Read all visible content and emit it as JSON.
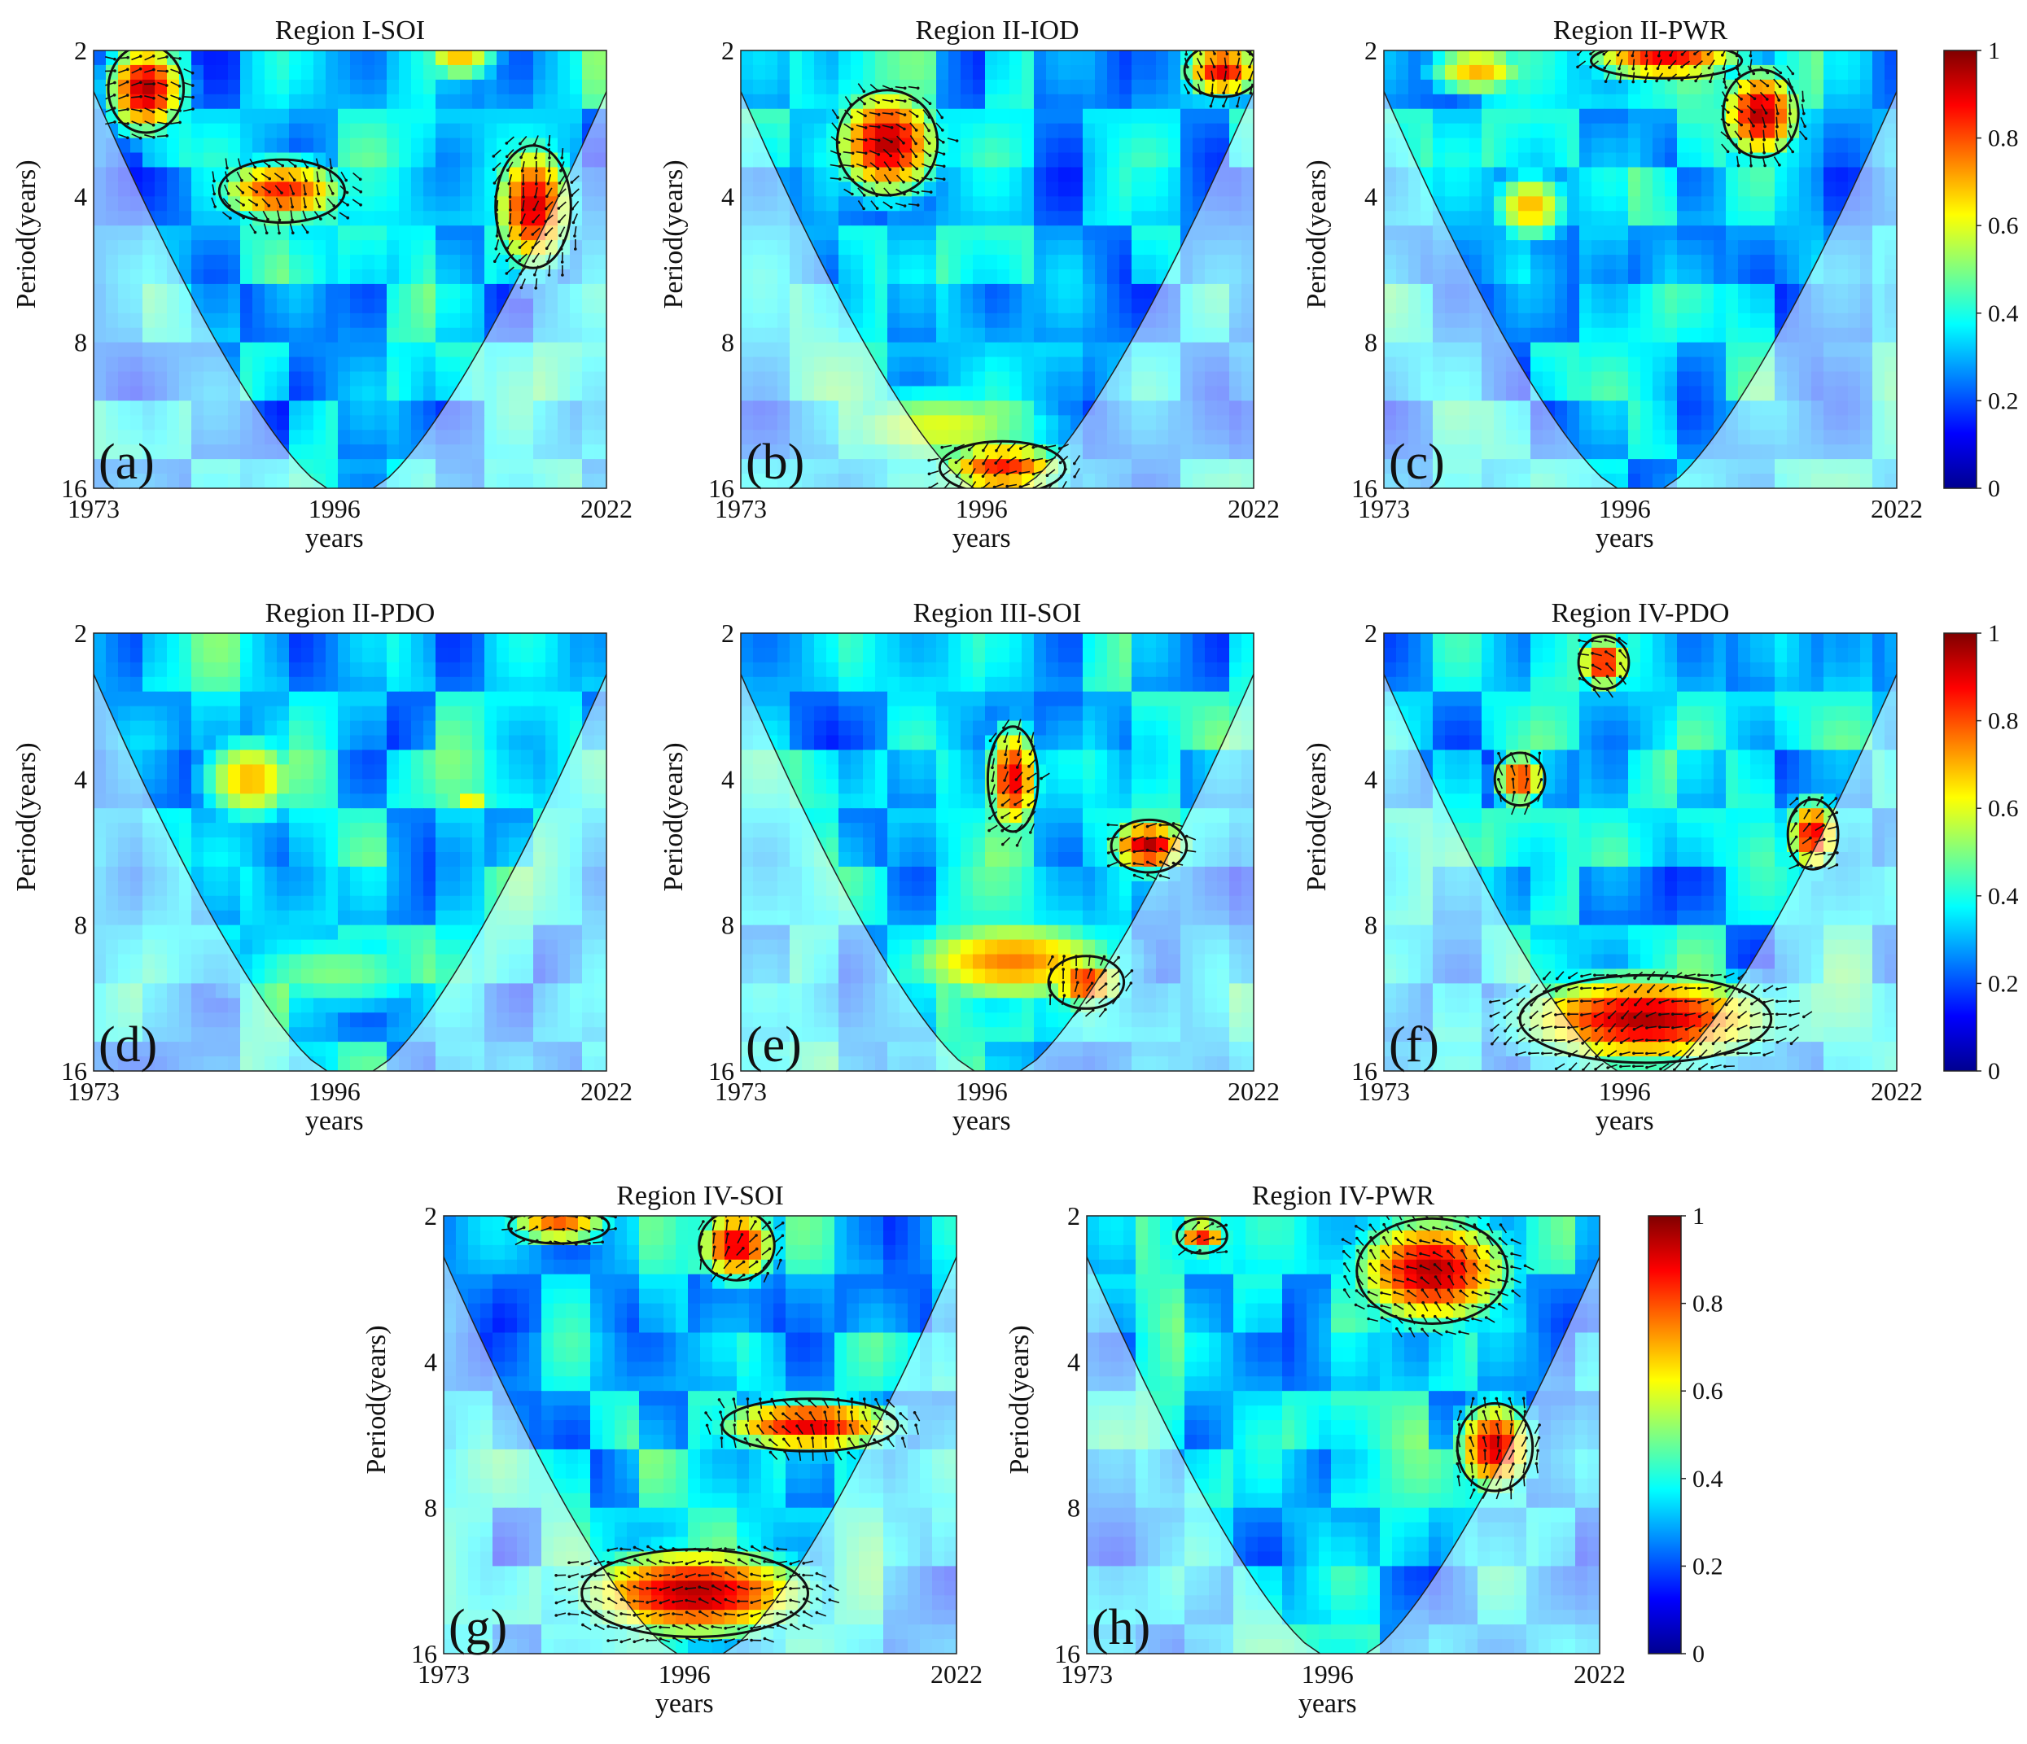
{
  "figure": {
    "description_labels": {
      "x_label": "years",
      "y_label": "Period(years)"
    }
  },
  "colorbar": {
    "ticks": [
      "0",
      "0.2",
      "0.4",
      "0.6",
      "0.8",
      "1"
    ],
    "colormap": [
      "#00008f",
      "#0000ff",
      "#0080ff",
      "#00ffff",
      "#80ff80",
      "#ffff00",
      "#ff8000",
      "#ff0000",
      "#800000"
    ]
  },
  "chart_data": [
    {
      "type": "heatmap",
      "title": "Region I-SOI",
      "panel_label": "(a)",
      "xlabel": "years",
      "ylabel": "Period(years)",
      "x_ticks": [
        "1973",
        "1996",
        "2022"
      ],
      "y_ticks": [
        "2",
        "4",
        "8",
        "16"
      ],
      "xlim": [
        1973,
        2022
      ],
      "ylim": [
        2,
        16
      ],
      "clim": [
        0,
        1
      ],
      "blobs": [
        {
          "x": 1978,
          "p": 2.4,
          "v": 0.95,
          "sx": 3,
          "sy": 0.25
        },
        {
          "x": 1991,
          "p": 3.9,
          "v": 0.85,
          "sx": 5,
          "sy": 0.18
        },
        {
          "x": 2015,
          "p": 4.2,
          "v": 0.92,
          "sx": 3,
          "sy": 0.35
        },
        {
          "x": 2008,
          "p": 2.1,
          "v": 0.7,
          "sx": 3,
          "sy": 0.1
        },
        {
          "x": 1998,
          "p": 11.5,
          "v": 0.05,
          "sx": 12,
          "sy": 0.3
        }
      ]
    },
    {
      "type": "heatmap",
      "title": "Region II-IOD",
      "panel_label": "(b)",
      "xlabel": "years",
      "ylabel": "Period(years)",
      "x_ticks": [
        "1973",
        "1996",
        "2022"
      ],
      "y_ticks": [
        "2",
        "4",
        "8",
        "16"
      ],
      "xlim": [
        1973,
        2022
      ],
      "ylim": [
        2,
        16
      ],
      "clim": [
        0,
        1
      ],
      "blobs": [
        {
          "x": 1987,
          "p": 3.1,
          "v": 0.95,
          "sx": 4,
          "sy": 0.3
        },
        {
          "x": 2019,
          "p": 2.2,
          "v": 0.9,
          "sx": 3,
          "sy": 0.15
        },
        {
          "x": 1998,
          "p": 14.5,
          "v": 0.85,
          "sx": 5,
          "sy": 0.15
        },
        {
          "x": 1992,
          "p": 12,
          "v": 0.6,
          "sx": 10,
          "sy": 0.25
        }
      ]
    },
    {
      "type": "heatmap",
      "title": "Region II-PWR",
      "panel_label": "(c)",
      "xlabel": "years",
      "ylabel": "Period(years)",
      "x_ticks": [
        "1973",
        "1996",
        "2022"
      ],
      "y_ticks": [
        "2",
        "4",
        "8",
        "16"
      ],
      "xlim": [
        1973,
        2022
      ],
      "ylim": [
        2,
        16
      ],
      "clim": [
        0,
        1
      ],
      "blobs": [
        {
          "x": 2009,
          "p": 2.7,
          "v": 0.95,
          "sx": 3,
          "sy": 0.25
        },
        {
          "x": 2000,
          "p": 2.1,
          "v": 0.9,
          "sx": 6,
          "sy": 0.1
        },
        {
          "x": 1982,
          "p": 2.2,
          "v": 0.7,
          "sx": 4,
          "sy": 0.15
        },
        {
          "x": 1987,
          "p": 4.2,
          "v": 0.7,
          "sx": 3,
          "sy": 0.2
        }
      ]
    },
    {
      "type": "heatmap",
      "title": "Region II-PDO",
      "panel_label": "(d)",
      "xlabel": "years",
      "ylabel": "Period(years)",
      "x_ticks": [
        "1973",
        "1996",
        "2022"
      ],
      "y_ticks": [
        "2",
        "4",
        "8",
        "16"
      ],
      "xlim": [
        1973,
        2022
      ],
      "ylim": [
        2,
        16
      ],
      "clim": [
        0,
        1
      ],
      "blobs": [
        {
          "x": 1988,
          "p": 4.0,
          "v": 0.7,
          "sx": 4,
          "sy": 0.25
        },
        {
          "x": 2009,
          "p": 4.4,
          "v": 0.65,
          "sx": 2,
          "sy": 0.1
        },
        {
          "x": 1996,
          "p": 10,
          "v": 0.5,
          "sx": 10,
          "sy": 0.25
        }
      ]
    },
    {
      "type": "heatmap",
      "title": "Region III-SOI",
      "panel_label": "(e)",
      "xlabel": "years",
      "ylabel": "Period(years)",
      "x_ticks": [
        "1973",
        "1996",
        "2022"
      ],
      "y_ticks": [
        "2",
        "4",
        "8",
        "16"
      ],
      "xlim": [
        1973,
        2022
      ],
      "ylim": [
        2,
        16
      ],
      "clim": [
        0,
        1
      ],
      "blobs": [
        {
          "x": 1999,
          "p": 4.0,
          "v": 0.9,
          "sx": 2,
          "sy": 0.3
        },
        {
          "x": 2012,
          "p": 5.5,
          "v": 0.95,
          "sx": 3,
          "sy": 0.15
        },
        {
          "x": 1999,
          "p": 9.5,
          "v": 0.75,
          "sx": 9,
          "sy": 0.25
        },
        {
          "x": 2006,
          "p": 10.5,
          "v": 0.85,
          "sx": 3,
          "sy": 0.15
        }
      ]
    },
    {
      "type": "heatmap",
      "title": "Region IV-PDO",
      "panel_label": "(f)",
      "xlabel": "years",
      "ylabel": "Period(years)",
      "x_ticks": [
        "1973",
        "1996",
        "2022"
      ],
      "y_ticks": [
        "2",
        "4",
        "8",
        "16"
      ],
      "xlim": [
        1973,
        2022
      ],
      "ylim": [
        2,
        16
      ],
      "clim": [
        0,
        1
      ],
      "blobs": [
        {
          "x": 1998,
          "p": 12.5,
          "v": 0.95,
          "sx": 10,
          "sy": 0.25
        },
        {
          "x": 1994,
          "p": 2.3,
          "v": 0.9,
          "sx": 2,
          "sy": 0.15
        },
        {
          "x": 1986,
          "p": 4.0,
          "v": 0.85,
          "sx": 2,
          "sy": 0.15
        },
        {
          "x": 2014,
          "p": 5.2,
          "v": 0.9,
          "sx": 2,
          "sy": 0.2
        }
      ]
    },
    {
      "type": "heatmap",
      "title": "Region IV-SOI",
      "panel_label": "(g)",
      "xlabel": "years",
      "ylabel": "Period(years)",
      "x_ticks": [
        "1973",
        "1996",
        "2022"
      ],
      "y_ticks": [
        "2",
        "4",
        "8",
        "16"
      ],
      "xlim": [
        1973,
        2022
      ],
      "ylim": [
        2,
        16
      ],
      "clim": [
        0,
        1
      ],
      "blobs": [
        {
          "x": 1997,
          "p": 12,
          "v": 0.95,
          "sx": 9,
          "sy": 0.25
        },
        {
          "x": 2008,
          "p": 5.4,
          "v": 0.9,
          "sx": 7,
          "sy": 0.15
        },
        {
          "x": 2001,
          "p": 2.3,
          "v": 0.92,
          "sx": 3,
          "sy": 0.2
        },
        {
          "x": 1984,
          "p": 2.1,
          "v": 0.8,
          "sx": 4,
          "sy": 0.1
        }
      ]
    },
    {
      "type": "heatmap",
      "title": "Region IV-PWR",
      "panel_label": "(h)",
      "xlabel": "years",
      "ylabel": "Period(years)",
      "x_ticks": [
        "1973",
        "1996",
        "2022"
      ],
      "y_ticks": [
        "2",
        "4",
        "8",
        "16"
      ],
      "xlim": [
        1973,
        2022
      ],
      "ylim": [
        2,
        16
      ],
      "clim": [
        0,
        1
      ],
      "blobs": [
        {
          "x": 2006,
          "p": 2.6,
          "v": 0.95,
          "sx": 6,
          "sy": 0.3
        },
        {
          "x": 2012,
          "p": 6.0,
          "v": 0.92,
          "sx": 3,
          "sy": 0.25
        },
        {
          "x": 1984,
          "p": 2.2,
          "v": 0.85,
          "sx": 2,
          "sy": 0.1
        }
      ]
    }
  ]
}
